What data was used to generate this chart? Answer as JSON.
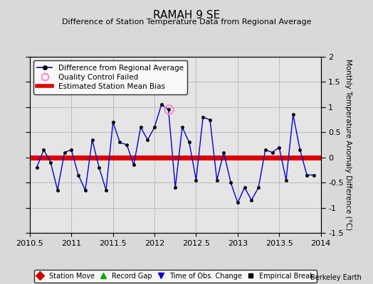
{
  "title": "RAMAH 9 SE",
  "subtitle": "Difference of Station Temperature Data from Regional Average",
  "ylabel": "Monthly Temperature Anomaly Difference (°C)",
  "credit": "Berkeley Earth",
  "xlim": [
    2010.5,
    2014.0
  ],
  "ylim": [
    -1.5,
    2.0
  ],
  "yticks": [
    -1.5,
    -1.0,
    -0.5,
    0.0,
    0.5,
    1.0,
    1.5,
    2.0
  ],
  "yticklabels": [
    "-1.5",
    "-1",
    "-0.5",
    "0",
    "0.5",
    "1",
    "1.5",
    "2"
  ],
  "xticks": [
    2010.5,
    2011.0,
    2011.5,
    2012.0,
    2012.5,
    2013.0,
    2013.5,
    2014.0
  ],
  "xticklabels": [
    "2010.5",
    "2011",
    "2011.5",
    "2012",
    "2012.5",
    "2013",
    "2013.5",
    "2014"
  ],
  "bias_value": 0.0,
  "line_color": "#0000cc",
  "bias_color": "#dd0000",
  "bg_color": "#d9d9d9",
  "plot_bg_color": "#e5e5e5",
  "grid_color": "#bbbbbb",
  "data_x": [
    2010.583,
    2010.667,
    2010.75,
    2010.833,
    2010.917,
    2011.0,
    2011.083,
    2011.167,
    2011.25,
    2011.333,
    2011.417,
    2011.5,
    2011.583,
    2011.667,
    2011.75,
    2011.833,
    2011.917,
    2012.0,
    2012.083,
    2012.167,
    2012.25,
    2012.333,
    2012.417,
    2012.5,
    2012.583,
    2012.667,
    2012.75,
    2012.833,
    2012.917,
    2013.0,
    2013.083,
    2013.167,
    2013.25,
    2013.333,
    2013.417,
    2013.5,
    2013.583,
    2013.667,
    2013.75,
    2013.833,
    2013.917
  ],
  "data_y": [
    -0.2,
    0.15,
    -0.1,
    -0.65,
    0.1,
    0.15,
    -0.35,
    -0.65,
    0.35,
    -0.2,
    -0.65,
    0.7,
    0.3,
    0.25,
    -0.15,
    0.6,
    0.35,
    0.6,
    1.05,
    0.95,
    -0.6,
    0.6,
    0.3,
    -0.45,
    0.8,
    0.75,
    -0.45,
    0.1,
    -0.5,
    -0.9,
    -0.6,
    -0.85,
    -0.6,
    0.15,
    0.1,
    0.2,
    -0.45,
    0.85,
    0.15,
    -0.35,
    -0.35
  ],
  "qc_fail_x": [
    2012.167
  ],
  "qc_fail_y": [
    0.95
  ],
  "legend1_loc": "upper left",
  "legend1_fontsize": 7.5,
  "legend2_fontsize": 7.0,
  "title_fontsize": 11,
  "subtitle_fontsize": 8,
  "tick_fontsize": 8,
  "ylabel_fontsize": 7.5
}
